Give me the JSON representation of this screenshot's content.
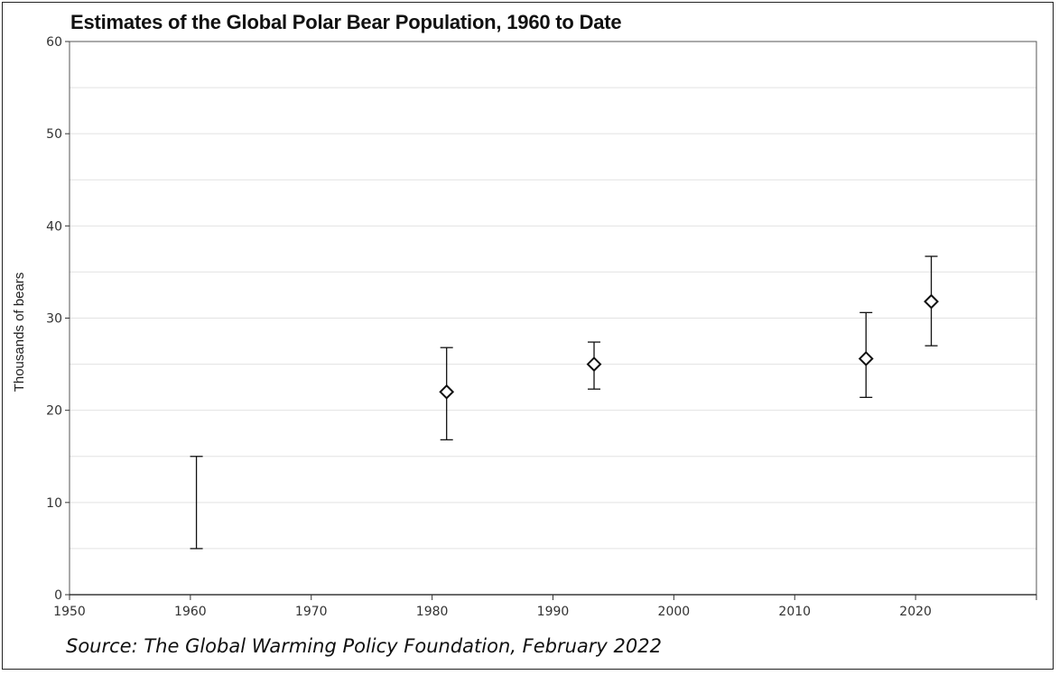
{
  "title": "Estimates of the Global Polar Bear Population, 1960 to Date",
  "source": "Source: The Global Warming Policy Foundation, February 2022",
  "chart_data": {
    "type": "scatter",
    "title": "Estimates of the Global Polar Bear Population, 1960 to Date",
    "xlabel": "",
    "ylabel": "Thousands of bears",
    "xlim": [
      1950,
      2030
    ],
    "ylim": [
      0,
      60
    ],
    "x_ticks": [
      1950,
      1960,
      1970,
      1980,
      1990,
      2000,
      2010,
      2020
    ],
    "y_ticks": [
      0,
      10,
      20,
      30,
      40,
      50,
      60
    ],
    "grid": "horizontal",
    "legend": "none",
    "marker": "diamond",
    "color": "#111111",
    "points": [
      {
        "x": 1960.5,
        "y": null,
        "low": 5.0,
        "high": 15.0
      },
      {
        "x": 1981.2,
        "y": 22.0,
        "low": 16.8,
        "high": 26.8
      },
      {
        "x": 1993.4,
        "y": 25.0,
        "low": 22.3,
        "high": 27.4
      },
      {
        "x": 2015.9,
        "y": 25.6,
        "low": 21.4,
        "high": 30.6
      },
      {
        "x": 2021.3,
        "y": 31.8,
        "low": 27.0,
        "high": 36.7
      }
    ]
  }
}
